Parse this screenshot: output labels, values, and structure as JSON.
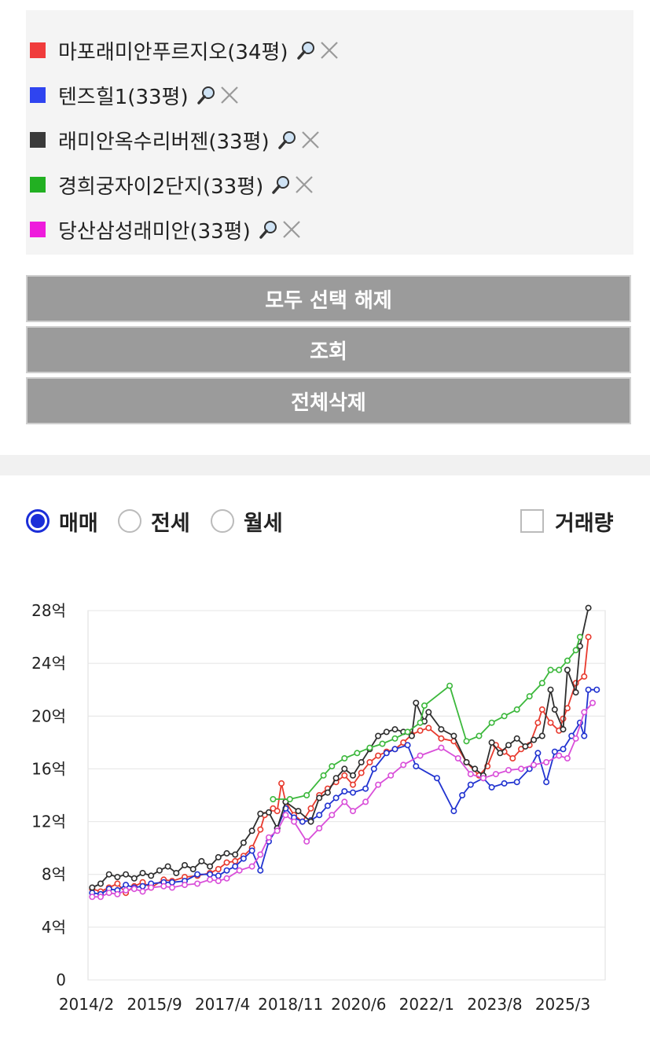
{
  "apartments": [
    {
      "label": "마포래미안푸르지오(34평)",
      "color": "#f03c3c"
    },
    {
      "label": "텐즈힐1(33평)",
      "color": "#2f44f0"
    },
    {
      "label": "래미안옥수리버젠(33평)",
      "color": "#3a3a3a"
    },
    {
      "label": "경희궁자이2단지(33평)",
      "color": "#22b022"
    },
    {
      "label": "당산삼성래미안(33평)",
      "color": "#ee1bdc"
    }
  ],
  "icons": {
    "zoom": "magnifier-icon",
    "remove": "close-icon"
  },
  "buttons": {
    "deselect_all": "모두 선택 해제",
    "search": "조회",
    "delete_all": "전체삭제"
  },
  "trade_types": {
    "sale": "매매",
    "jeonse": "전세",
    "monthly": "월세",
    "selected": "sale"
  },
  "volume": {
    "label": "거래량",
    "checked": false
  },
  "chart_data": {
    "type": "line",
    "y_ticks": [
      "0",
      "4억",
      "8억",
      "12억",
      "16억",
      "20억",
      "24억",
      "28억"
    ],
    "x_ticks": [
      "2014/2",
      "2015/9",
      "2017/4",
      "2018/11",
      "2020/6",
      "2022/1",
      "2023/8",
      "2025/3"
    ],
    "ylim": [
      0,
      28
    ],
    "xlim": [
      2014.0,
      2026.3
    ],
    "grid": true,
    "series": [
      {
        "name": "마포래미안푸르지오(34평)",
        "color": "#e83a2e",
        "points": [
          [
            2014.1,
            6.9
          ],
          [
            2014.3,
            6.7
          ],
          [
            2014.5,
            7.0
          ],
          [
            2014.7,
            7.3
          ],
          [
            2014.9,
            6.6
          ],
          [
            2015.1,
            7.1
          ],
          [
            2015.3,
            7.4
          ],
          [
            2015.5,
            7.0
          ],
          [
            2015.8,
            7.6
          ],
          [
            2016.0,
            7.5
          ],
          [
            2016.3,
            7.8
          ],
          [
            2016.6,
            7.9
          ],
          [
            2016.9,
            8.1
          ],
          [
            2017.1,
            8.4
          ],
          [
            2017.3,
            8.9
          ],
          [
            2017.5,
            9.0
          ],
          [
            2017.7,
            9.4
          ],
          [
            2017.9,
            10.0
          ],
          [
            2018.1,
            11.4
          ],
          [
            2018.2,
            12.5
          ],
          [
            2018.4,
            13.0
          ],
          [
            2018.5,
            12.8
          ],
          [
            2018.6,
            14.9
          ],
          [
            2018.7,
            13.5
          ],
          [
            2018.9,
            12.5
          ],
          [
            2019.1,
            12.0
          ],
          [
            2019.3,
            13.0
          ],
          [
            2019.5,
            14.0
          ],
          [
            2019.7,
            14.5
          ],
          [
            2019.9,
            15.0
          ],
          [
            2020.1,
            15.5
          ],
          [
            2020.3,
            14.8
          ],
          [
            2020.5,
            15.7
          ],
          [
            2020.7,
            16.5
          ],
          [
            2020.9,
            17.0
          ],
          [
            2021.1,
            17.3
          ],
          [
            2021.3,
            17.5
          ],
          [
            2021.5,
            18.0
          ],
          [
            2021.7,
            18.6
          ],
          [
            2021.9,
            18.9
          ],
          [
            2022.1,
            19.1
          ],
          [
            2022.4,
            18.3
          ],
          [
            2022.7,
            18.1
          ],
          [
            2023.0,
            16.5
          ],
          [
            2023.3,
            15.5
          ],
          [
            2023.5,
            16.2
          ],
          [
            2023.7,
            17.8
          ],
          [
            2023.9,
            17.3
          ],
          [
            2024.1,
            16.8
          ],
          [
            2024.3,
            17.5
          ],
          [
            2024.5,
            17.8
          ],
          [
            2024.7,
            19.5
          ],
          [
            2024.8,
            20.5
          ],
          [
            2025.0,
            19.5
          ],
          [
            2025.2,
            18.9
          ],
          [
            2025.3,
            19.8
          ],
          [
            2025.4,
            20.6
          ],
          [
            2025.6,
            22.5
          ],
          [
            2025.8,
            23.0
          ],
          [
            2025.9,
            26.0
          ]
        ]
      },
      {
        "name": "텐즈힐1(33평)",
        "color": "#2133d0",
        "points": [
          [
            2014.1,
            6.6
          ],
          [
            2014.3,
            6.5
          ],
          [
            2014.5,
            6.9
          ],
          [
            2014.7,
            6.8
          ],
          [
            2014.9,
            7.2
          ],
          [
            2015.1,
            7.0
          ],
          [
            2015.3,
            7.1
          ],
          [
            2015.5,
            7.3
          ],
          [
            2015.8,
            7.4
          ],
          [
            2016.0,
            7.4
          ],
          [
            2016.3,
            7.5
          ],
          [
            2016.6,
            8.0
          ],
          [
            2016.9,
            8.0
          ],
          [
            2017.1,
            7.9
          ],
          [
            2017.3,
            8.3
          ],
          [
            2017.5,
            8.6
          ],
          [
            2017.7,
            9.2
          ],
          [
            2017.9,
            9.8
          ],
          [
            2018.1,
            8.3
          ],
          [
            2018.3,
            10.5
          ],
          [
            2018.5,
            11.5
          ],
          [
            2018.7,
            13.0
          ],
          [
            2018.9,
            12.3
          ],
          [
            2019.1,
            12.0
          ],
          [
            2019.3,
            12.1
          ],
          [
            2019.5,
            12.5
          ],
          [
            2019.7,
            13.2
          ],
          [
            2019.9,
            13.8
          ],
          [
            2020.1,
            14.3
          ],
          [
            2020.3,
            14.2
          ],
          [
            2020.6,
            14.5
          ],
          [
            2020.8,
            16.0
          ],
          [
            2021.1,
            17.2
          ],
          [
            2021.3,
            17.5
          ],
          [
            2021.6,
            17.8
          ],
          [
            2021.8,
            16.2
          ],
          [
            2022.3,
            15.3
          ],
          [
            2022.7,
            12.8
          ],
          [
            2022.9,
            14.0
          ],
          [
            2023.1,
            14.8
          ],
          [
            2023.4,
            15.3
          ],
          [
            2023.6,
            14.6
          ],
          [
            2023.9,
            14.9
          ],
          [
            2024.2,
            15.0
          ],
          [
            2024.5,
            16.0
          ],
          [
            2024.7,
            17.2
          ],
          [
            2024.9,
            15.0
          ],
          [
            2025.1,
            17.3
          ],
          [
            2025.3,
            17.5
          ],
          [
            2025.5,
            18.5
          ],
          [
            2025.7,
            19.5
          ],
          [
            2025.8,
            18.5
          ],
          [
            2025.9,
            22.0
          ],
          [
            2026.1,
            22.0
          ]
        ]
      },
      {
        "name": "래미안옥수리버젠(33평)",
        "color": "#2e2e2e",
        "points": [
          [
            2014.1,
            7.0
          ],
          [
            2014.3,
            7.3
          ],
          [
            2014.5,
            8.0
          ],
          [
            2014.7,
            7.8
          ],
          [
            2014.9,
            8.0
          ],
          [
            2015.1,
            7.7
          ],
          [
            2015.3,
            8.1
          ],
          [
            2015.5,
            7.9
          ],
          [
            2015.7,
            8.3
          ],
          [
            2015.9,
            8.6
          ],
          [
            2016.1,
            8.1
          ],
          [
            2016.3,
            8.7
          ],
          [
            2016.5,
            8.4
          ],
          [
            2016.7,
            9.0
          ],
          [
            2016.9,
            8.6
          ],
          [
            2017.1,
            9.3
          ],
          [
            2017.3,
            9.6
          ],
          [
            2017.5,
            9.5
          ],
          [
            2017.7,
            10.4
          ],
          [
            2017.9,
            11.3
          ],
          [
            2018.1,
            12.6
          ],
          [
            2018.3,
            12.7
          ],
          [
            2018.5,
            11.5
          ],
          [
            2018.7,
            13.5
          ],
          [
            2019.0,
            12.8
          ],
          [
            2019.3,
            12.0
          ],
          [
            2019.5,
            13.8
          ],
          [
            2019.7,
            14.2
          ],
          [
            2019.9,
            15.3
          ],
          [
            2020.1,
            16.0
          ],
          [
            2020.3,
            15.5
          ],
          [
            2020.5,
            16.5
          ],
          [
            2020.7,
            17.5
          ],
          [
            2020.9,
            18.5
          ],
          [
            2021.1,
            18.8
          ],
          [
            2021.3,
            19.0
          ],
          [
            2021.5,
            18.8
          ],
          [
            2021.7,
            18.5
          ],
          [
            2021.8,
            21.0
          ],
          [
            2022.0,
            19.6
          ],
          [
            2022.1,
            20.3
          ],
          [
            2022.4,
            19.0
          ],
          [
            2022.7,
            18.5
          ],
          [
            2023.0,
            16.5
          ],
          [
            2023.2,
            16.0
          ],
          [
            2023.4,
            15.5
          ],
          [
            2023.6,
            18.0
          ],
          [
            2023.8,
            17.2
          ],
          [
            2024.0,
            17.8
          ],
          [
            2024.2,
            18.3
          ],
          [
            2024.4,
            17.7
          ],
          [
            2024.6,
            18.2
          ],
          [
            2024.8,
            18.5
          ],
          [
            2025.0,
            22.0
          ],
          [
            2025.1,
            20.5
          ],
          [
            2025.3,
            19.0
          ],
          [
            2025.4,
            23.5
          ],
          [
            2025.6,
            21.8
          ],
          [
            2025.7,
            25.3
          ],
          [
            2025.9,
            28.2
          ]
        ]
      },
      {
        "name": "경희궁자이2단지(33평)",
        "color": "#3cb83c",
        "points": [
          [
            2018.4,
            13.7
          ],
          [
            2018.8,
            13.7
          ],
          [
            2019.2,
            14.0
          ],
          [
            2019.6,
            15.5
          ],
          [
            2019.8,
            16.2
          ],
          [
            2020.1,
            16.8
          ],
          [
            2020.4,
            17.2
          ],
          [
            2020.7,
            17.6
          ],
          [
            2021.0,
            17.9
          ],
          [
            2021.3,
            18.3
          ],
          [
            2021.6,
            18.8
          ],
          [
            2021.9,
            19.5
          ],
          [
            2022.0,
            20.8
          ],
          [
            2022.6,
            22.3
          ],
          [
            2023.0,
            18.1
          ],
          [
            2023.3,
            18.5
          ],
          [
            2023.6,
            19.5
          ],
          [
            2023.9,
            20.0
          ],
          [
            2024.2,
            20.5
          ],
          [
            2024.5,
            21.5
          ],
          [
            2024.8,
            22.5
          ],
          [
            2025.0,
            23.5
          ],
          [
            2025.2,
            23.5
          ],
          [
            2025.4,
            24.2
          ],
          [
            2025.6,
            25.0
          ],
          [
            2025.7,
            26.0
          ]
        ]
      },
      {
        "name": "당산삼성래미안(33평)",
        "color": "#d94fd9",
        "points": [
          [
            2014.1,
            6.3
          ],
          [
            2014.3,
            6.3
          ],
          [
            2014.5,
            6.6
          ],
          [
            2014.7,
            6.5
          ],
          [
            2014.9,
            6.8
          ],
          [
            2015.1,
            6.9
          ],
          [
            2015.3,
            6.7
          ],
          [
            2015.5,
            7.0
          ],
          [
            2015.8,
            7.1
          ],
          [
            2016.0,
            7.0
          ],
          [
            2016.3,
            7.2
          ],
          [
            2016.6,
            7.3
          ],
          [
            2016.9,
            7.6
          ],
          [
            2017.1,
            7.5
          ],
          [
            2017.3,
            7.7
          ],
          [
            2017.6,
            8.3
          ],
          [
            2017.9,
            8.6
          ],
          [
            2018.1,
            9.5
          ],
          [
            2018.3,
            10.8
          ],
          [
            2018.5,
            11.3
          ],
          [
            2018.7,
            12.5
          ],
          [
            2018.9,
            12.0
          ],
          [
            2019.2,
            10.5
          ],
          [
            2019.5,
            11.5
          ],
          [
            2019.8,
            12.5
          ],
          [
            2020.1,
            13.5
          ],
          [
            2020.3,
            12.8
          ],
          [
            2020.6,
            13.5
          ],
          [
            2020.9,
            14.8
          ],
          [
            2021.2,
            15.5
          ],
          [
            2021.5,
            16.3
          ],
          [
            2021.9,
            17.0
          ],
          [
            2022.4,
            17.6
          ],
          [
            2022.8,
            16.8
          ],
          [
            2023.1,
            15.6
          ],
          [
            2023.4,
            15.3
          ],
          [
            2023.7,
            15.6
          ],
          [
            2024.0,
            15.9
          ],
          [
            2024.3,
            16.0
          ],
          [
            2024.6,
            16.3
          ],
          [
            2024.9,
            16.5
          ],
          [
            2025.2,
            17.0
          ],
          [
            2025.4,
            16.8
          ],
          [
            2025.6,
            18.3
          ],
          [
            2025.8,
            20.3
          ],
          [
            2026.0,
            21.0
          ]
        ]
      }
    ]
  }
}
